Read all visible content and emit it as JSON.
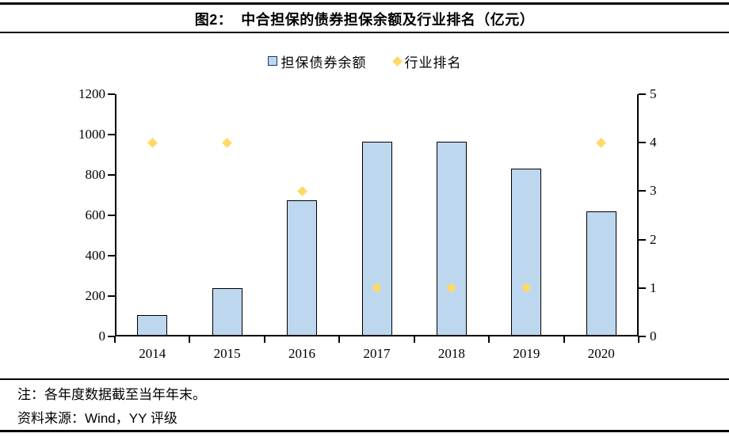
{
  "header": {
    "title": "图2：  中合担保的债券担保余额及行业排名（亿元）"
  },
  "chart_data": {
    "type": "bar",
    "title": "中合担保的债券担保余额及行业排名（亿元）",
    "categories": [
      "2014",
      "2015",
      "2016",
      "2017",
      "2018",
      "2019",
      "2020"
    ],
    "series": [
      {
        "name": "担保债券余额",
        "type": "bar",
        "axis": "left",
        "values": [
          105,
          240,
          675,
          965,
          965,
          830,
          620
        ],
        "fill": "#BDD7EE",
        "stroke": "#000000"
      },
      {
        "name": "行业排名",
        "type": "scatter",
        "marker": "diamond",
        "axis": "right",
        "values": [
          4,
          4,
          3,
          1,
          1,
          1,
          4
        ],
        "fill": "#FFD966"
      }
    ],
    "left_axis": {
      "min": 0,
      "max": 1200,
      "step": 200
    },
    "right_axis": {
      "min": 0,
      "max": 5,
      "step": 1
    },
    "legend_position": "top",
    "grid": false
  },
  "footer": {
    "note": "注：各年度数据截至当年年末。",
    "source": "资料来源：Wind，YY 评级"
  },
  "colors": {
    "bar_fill": "#BDD7EE",
    "bar_stroke": "#000000",
    "diamond": "#FFD966",
    "legend_square_border": "#17375E",
    "rule": "#000000"
  }
}
